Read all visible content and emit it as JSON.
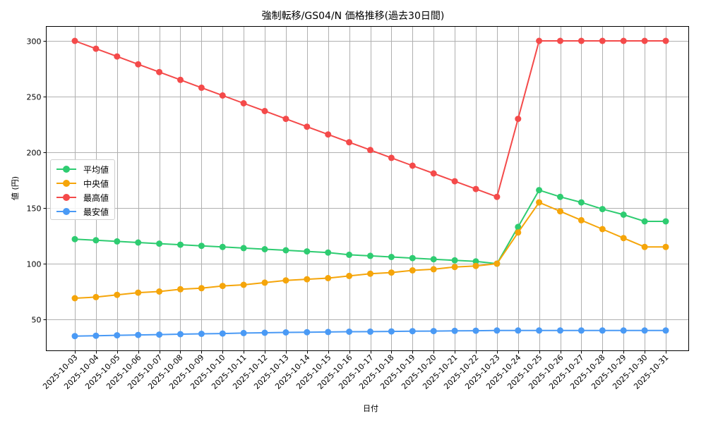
{
  "chart_data": {
    "type": "line",
    "title": "強制転移/GS04/N 価格推移(過去30日間)",
    "xlabel": "日付",
    "ylabel": "値 (円)",
    "ylim": [
      22,
      313
    ],
    "yticks": [
      50,
      100,
      150,
      200,
      250,
      300
    ],
    "grid": true,
    "legend_position": "center left",
    "categories": [
      "2025-10-03",
      "2025-10-04",
      "2025-10-05",
      "2025-10-06",
      "2025-10-07",
      "2025-10-08",
      "2025-10-09",
      "2025-10-10",
      "2025-10-11",
      "2025-10-12",
      "2025-10-13",
      "2025-10-14",
      "2025-10-15",
      "2025-10-16",
      "2025-10-17",
      "2025-10-18",
      "2025-10-19",
      "2025-10-20",
      "2025-10-21",
      "2025-10-22",
      "2025-10-23",
      "2025-10-24",
      "2025-10-25",
      "2025-10-26",
      "2025-10-27",
      "2025-10-28",
      "2025-10-29",
      "2025-10-30",
      "2025-10-31"
    ],
    "series": [
      {
        "name": "平均値",
        "color": "#2ecc71",
        "values": [
          122,
          121,
          120,
          119,
          118,
          117,
          116,
          115,
          114,
          113,
          112,
          111,
          110,
          108,
          107,
          106,
          105,
          104,
          103,
          102,
          100,
          133,
          166,
          160,
          155,
          149,
          144,
          138,
          138
        ]
      },
      {
        "name": "中央値",
        "color": "#f5a50a",
        "values": [
          69,
          70,
          72,
          74,
          75,
          77,
          78,
          80,
          81,
          83,
          85,
          86,
          87,
          89,
          91,
          92,
          94,
          95,
          97,
          98,
          100,
          128,
          155,
          147,
          139,
          131,
          123,
          115,
          115
        ]
      },
      {
        "name": "最高値",
        "color": "#f44a4a",
        "values": [
          300,
          293,
          286,
          279,
          272,
          265,
          258,
          251,
          244,
          237,
          230,
          223,
          216,
          209,
          202,
          195,
          188,
          181,
          174,
          167,
          160,
          230,
          300,
          300,
          300,
          300,
          300,
          300,
          300
        ]
      },
      {
        "name": "最安値",
        "color": "#4a9af5",
        "values": [
          35,
          35.3,
          35.7,
          36,
          36.3,
          36.7,
          37,
          37.3,
          37.7,
          38,
          38.3,
          38.5,
          38.7,
          38.9,
          39,
          39.2,
          39.4,
          39.5,
          39.7,
          39.8,
          40,
          40,
          40,
          40,
          40,
          40,
          40,
          40,
          40
        ]
      }
    ]
  }
}
